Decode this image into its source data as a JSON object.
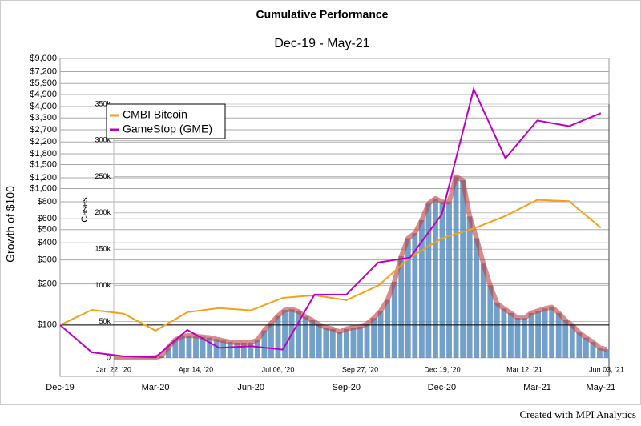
{
  "chart_data": [
    {
      "type": "line",
      "title": "Cumulative Performance",
      "subtitle": "Dec-19 - May-21",
      "y_label": "Growth of $100",
      "log_scale": true,
      "grid": true,
      "legend": "upper left",
      "categories": [
        "Dec-19",
        null,
        null,
        "Mar-20",
        null,
        null,
        "Jun-20",
        null,
        null,
        "Sep-20",
        null,
        null,
        "Dec-20",
        null,
        null,
        "Mar-21",
        null,
        "May-21"
      ],
      "series": [
        {
          "name": "CMBI Bitcoin",
          "color": "#f5a01a",
          "values": [
            100,
            129,
            121,
            91,
            124,
            133,
            128,
            158,
            165,
            152,
            194,
            312,
            432,
            509,
            630,
            826,
            808,
            516
          ]
        },
        {
          "name": "GameStop (GME)",
          "color": "#c000c0",
          "values": [
            100,
            63,
            59,
            58,
            92,
            68,
            70,
            66,
            167,
            167,
            287,
            312,
            648,
            5370,
            1670,
            3160,
            2870,
            3580
          ]
        }
      ],
      "ylim": [
        42,
        9000
      ],
      "yticks": [
        {
          "value": 100,
          "label": "$100"
        },
        {
          "value": 200,
          "label": "$200"
        },
        {
          "value": 300,
          "label": "$300"
        },
        {
          "value": 400,
          "label": "$400"
        },
        {
          "value": 500,
          "label": "$500"
        },
        {
          "value": 600,
          "label": "$600"
        },
        {
          "value": 800,
          "label": "$800"
        },
        {
          "value": 1000,
          "label": "$1,000"
        },
        {
          "value": 1200,
          "label": "$1,200"
        },
        {
          "value": 1500,
          "label": "$1,500"
        },
        {
          "value": 1800,
          "label": "$1,800"
        },
        {
          "value": 2200,
          "label": "$2,200"
        },
        {
          "value": 2700,
          "label": "$2,700"
        },
        {
          "value": 3300,
          "label": "$3,300"
        },
        {
          "value": 4000,
          "label": "$4,000"
        },
        {
          "value": 4900,
          "label": "$4,900"
        },
        {
          "value": 5900,
          "label": "$5,900"
        },
        {
          "value": 7200,
          "label": "$7,200"
        },
        {
          "value": 9000,
          "label": "$9,000"
        }
      ],
      "footer": "Created with MPI Analytics"
    },
    {
      "type": "bar",
      "y_label": "Cases",
      "color": "#5b8fc0",
      "line_color": "#c04040",
      "categories": [
        "Jan 22, '20",
        null,
        null,
        null,
        null,
        null,
        null,
        null,
        null,
        null,
        null,
        null,
        "Apr 14, '20",
        null,
        null,
        null,
        null,
        null,
        null,
        null,
        null,
        null,
        null,
        null,
        "Jul 06, '20",
        null,
        null,
        null,
        null,
        null,
        null,
        null,
        null,
        null,
        null,
        null,
        "Sep 27, '20",
        null,
        null,
        null,
        null,
        null,
        null,
        null,
        null,
        null,
        null,
        null,
        "Dec 19, '20",
        null,
        null,
        null,
        null,
        null,
        null,
        null,
        null,
        null,
        null,
        null,
        "Mar 12, '21",
        null,
        null,
        null,
        null,
        null,
        null,
        null,
        null,
        null,
        null,
        null,
        "Jun 03, '21"
      ],
      "values": [
        0,
        0,
        0,
        0,
        0,
        0,
        500,
        3000,
        15000,
        25000,
        30000,
        31000,
        30000,
        29000,
        28000,
        26000,
        24000,
        22000,
        21000,
        21000,
        21000,
        25000,
        38000,
        48000,
        58000,
        66000,
        67000,
        64000,
        57000,
        52000,
        46000,
        42000,
        40000,
        36000,
        40000,
        42000,
        43000,
        47000,
        55000,
        65000,
        80000,
        105000,
        140000,
        165000,
        172000,
        190000,
        213000,
        220000,
        215000,
        215000,
        250000,
        245000,
        195000,
        165000,
        130000,
        100000,
        75000,
        68000,
        62000,
        55000,
        55000,
        62000,
        65000,
        68000,
        70000,
        62000,
        52000,
        45000,
        35000,
        28000,
        22000,
        14000,
        12000
      ],
      "ylim": [
        0,
        350000
      ],
      "yticks": [
        0,
        {
          "value": 50000,
          "label": "50k"
        },
        {
          "value": 100000,
          "label": "100k"
        },
        {
          "value": 150000,
          "label": "150k"
        },
        {
          "value": 200000,
          "label": "200k"
        },
        {
          "value": 250000,
          "label": "250k"
        },
        {
          "value": 300000,
          "label": "300k"
        },
        {
          "value": 350000,
          "label": "350k"
        }
      ]
    }
  ]
}
